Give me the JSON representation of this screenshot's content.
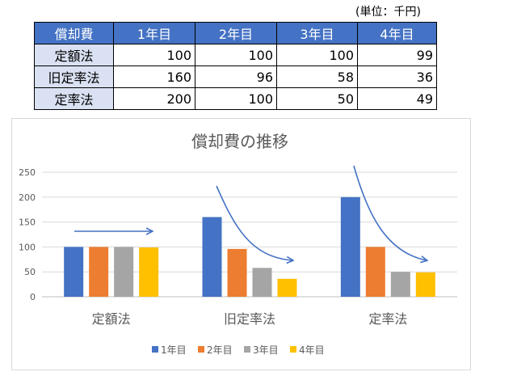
{
  "table": {
    "unit_note": "(単位：千円)",
    "header": [
      "償却費",
      "1年目",
      "2年目",
      "3年目",
      "4年目"
    ],
    "rows": [
      {
        "label": "定額法",
        "values": [
          "100",
          "100",
          "100",
          "99"
        ]
      },
      {
        "label": "旧定率法",
        "values": [
          "160",
          "96",
          "58",
          "36"
        ]
      },
      {
        "label": "定率法",
        "values": [
          "200",
          "100",
          "50",
          "49"
        ]
      }
    ]
  },
  "chart_data": {
    "type": "bar",
    "title": "償却費の推移",
    "categories": [
      "定額法",
      "旧定率法",
      "定率法"
    ],
    "series": [
      {
        "name": "1年目",
        "color": "#4472c4",
        "values": [
          100,
          160,
          200
        ]
      },
      {
        "name": "2年目",
        "color": "#ed7d31",
        "values": [
          100,
          96,
          100
        ]
      },
      {
        "name": "3年目",
        "color": "#a5a5a5",
        "values": [
          100,
          58,
          50
        ]
      },
      {
        "name": "4年目",
        "color": "#ffc000",
        "values": [
          99,
          36,
          49
        ]
      }
    ],
    "yticks": [
      "0",
      "50",
      "100",
      "150",
      "200",
      "250"
    ],
    "ylim": [
      0,
      250
    ],
    "grid": true,
    "legend_position": "bottom",
    "arrow_color": "#4472c4"
  }
}
